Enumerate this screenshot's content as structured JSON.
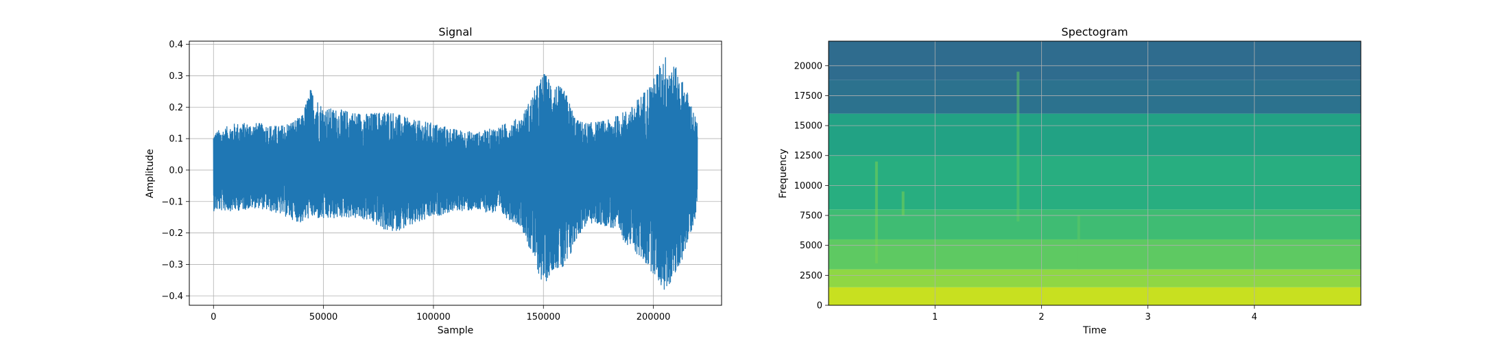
{
  "chart_data": [
    {
      "type": "line",
      "title": "Signal",
      "xlabel": "Sample",
      "ylabel": "Amplitude",
      "xlim": [
        -11000,
        231000
      ],
      "ylim": [
        -0.43,
        0.41
      ],
      "xticks": [
        0,
        50000,
        100000,
        150000,
        200000
      ],
      "xtick_labels": [
        "0",
        "50000",
        "100000",
        "150000",
        "200000"
      ],
      "yticks": [
        -0.4,
        -0.3,
        -0.2,
        -0.1,
        0.0,
        0.1,
        0.2,
        0.3,
        0.4
      ],
      "ytick_labels": [
        "−0.4",
        "−0.3",
        "−0.2",
        "−0.1",
        "0.0",
        "0.1",
        "0.2",
        "0.3",
        "0.4"
      ],
      "grid": true,
      "series_color": "#1f77b4",
      "envelope": {
        "x": [
          0,
          10000,
          20000,
          30000,
          40000,
          44000,
          50000,
          60000,
          70000,
          80000,
          90000,
          100000,
          110000,
          120000,
          130000,
          140000,
          145000,
          150000,
          155000,
          160000,
          165000,
          170000,
          180000,
          190000,
          200000,
          205000,
          210000,
          215000,
          220000
        ],
        "upper": [
          0.12,
          0.15,
          0.15,
          0.14,
          0.17,
          0.26,
          0.2,
          0.19,
          0.18,
          0.19,
          0.16,
          0.15,
          0.13,
          0.12,
          0.14,
          0.17,
          0.24,
          0.31,
          0.28,
          0.25,
          0.16,
          0.15,
          0.16,
          0.2,
          0.29,
          0.37,
          0.33,
          0.26,
          0.15
        ],
        "lower": [
          -0.13,
          -0.13,
          -0.12,
          -0.14,
          -0.17,
          -0.15,
          -0.16,
          -0.15,
          -0.16,
          -0.2,
          -0.18,
          -0.15,
          -0.13,
          -0.13,
          -0.14,
          -0.18,
          -0.28,
          -0.37,
          -0.31,
          -0.33,
          -0.22,
          -0.17,
          -0.18,
          -0.25,
          -0.33,
          -0.39,
          -0.34,
          -0.25,
          -0.13
        ]
      }
    },
    {
      "type": "heatmap",
      "title": "Spectogram",
      "xlabel": "Time",
      "ylabel": "Frequency",
      "xlim": [
        0,
        5.0
      ],
      "ylim": [
        0,
        22050
      ],
      "xticks": [
        1,
        2,
        3,
        4
      ],
      "xtick_labels": [
        "1",
        "2",
        "3",
        "4"
      ],
      "yticks": [
        0,
        2500,
        5000,
        7500,
        10000,
        12500,
        15000,
        17500,
        20000
      ],
      "ytick_labels": [
        "0",
        "2500",
        "5000",
        "7500",
        "10000",
        "12500",
        "15000",
        "17500",
        "20000"
      ],
      "grid": true,
      "colormap": "viridis",
      "bands": [
        {
          "from": 0,
          "to": 1500,
          "color": "#c8e020"
        },
        {
          "from": 1500,
          "to": 3000,
          "color": "#8fd744"
        },
        {
          "from": 3000,
          "to": 5500,
          "color": "#5ec962"
        },
        {
          "from": 5500,
          "to": 8000,
          "color": "#3fbc73"
        },
        {
          "from": 8000,
          "to": 12500,
          "color": "#28ae80"
        },
        {
          "from": 12500,
          "to": 16000,
          "color": "#22a284"
        },
        {
          "from": 16000,
          "to": 18800,
          "color": "#2c728e"
        },
        {
          "from": 18800,
          "to": 22050,
          "color": "#2f6c8e"
        }
      ],
      "streaks": [
        {
          "t": 0.45,
          "f_min": 3500,
          "f_max": 12000,
          "color": "#7ad151"
        },
        {
          "t": 0.7,
          "f_min": 7500,
          "f_max": 9500,
          "color": "#7ad151"
        },
        {
          "t": 1.78,
          "f_min": 7000,
          "f_max": 19500,
          "color": "#5ec962"
        },
        {
          "t": 2.35,
          "f_min": 3000,
          "f_max": 7500,
          "color": "#5ec962"
        }
      ]
    }
  ]
}
